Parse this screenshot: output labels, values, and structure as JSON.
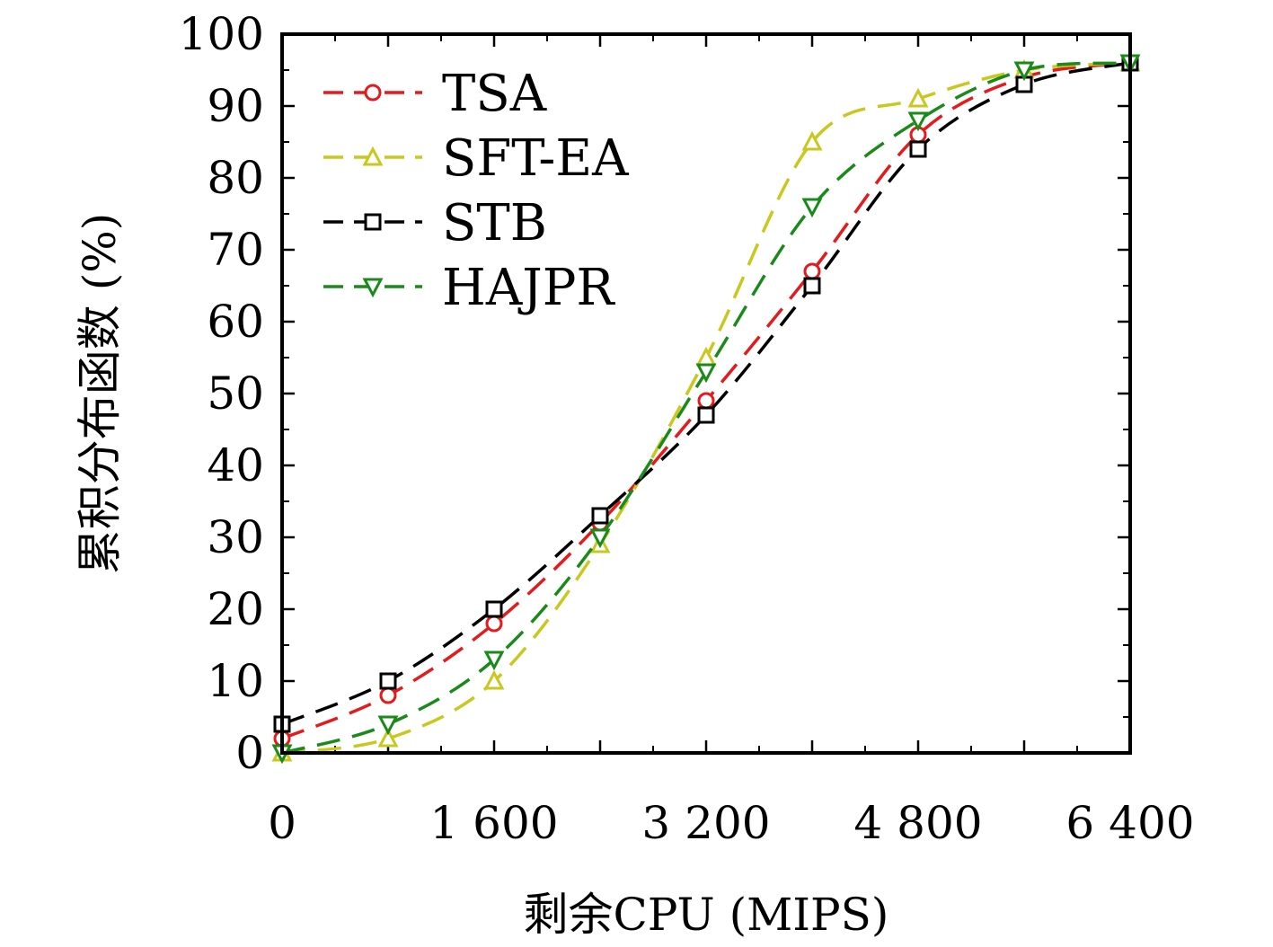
{
  "chart_data": {
    "type": "line",
    "title": "",
    "xlabel": "剩余CPU (MIPS)",
    "ylabel": "累积分布函数 (%)",
    "xlim": [
      0,
      6400
    ],
    "ylim": [
      0,
      100
    ],
    "x": [
      0,
      800,
      1600,
      2400,
      3200,
      4000,
      4800,
      5600,
      6400
    ],
    "x_ticks": [
      0,
      1600,
      3200,
      4800,
      6400
    ],
    "x_tick_labels": [
      "0",
      "1 600",
      "3 200",
      "4 800",
      "6 400"
    ],
    "y_ticks": [
      0,
      10,
      20,
      30,
      40,
      50,
      60,
      70,
      80,
      90,
      100
    ],
    "y_tick_labels": [
      "0",
      "10",
      "20",
      "30",
      "40",
      "50",
      "60",
      "70",
      "80",
      "90",
      "100"
    ],
    "grid": false,
    "legend_position": "top-left",
    "series": [
      {
        "name": "TSA",
        "color": "#e41a1c",
        "marker": "circle",
        "values": [
          2,
          8,
          18,
          32,
          49,
          67,
          86,
          94,
          96
        ]
      },
      {
        "name": "SFT-EA",
        "color": "#c8c81e",
        "marker": "triangle-up",
        "values": [
          0,
          2,
          10,
          29,
          55,
          85,
          91,
          95,
          96
        ]
      },
      {
        "name": "STB",
        "color": "#000000",
        "marker": "square",
        "values": [
          4,
          10,
          20,
          33,
          47,
          65,
          84,
          93,
          96
        ]
      },
      {
        "name": "HAJPR",
        "color": "#1a8a1a",
        "marker": "triangle-down",
        "values": [
          0,
          4,
          13,
          30,
          53,
          76,
          88,
          95,
          96
        ]
      }
    ]
  }
}
